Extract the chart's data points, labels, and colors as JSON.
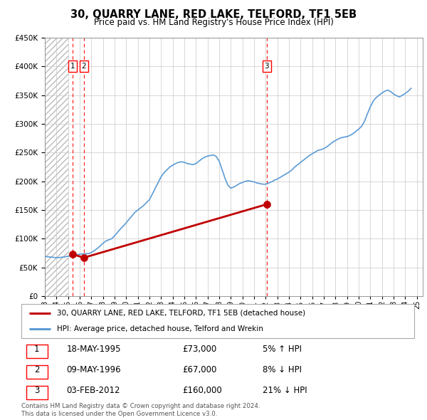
{
  "title": "30, QUARRY LANE, RED LAKE, TELFORD, TF1 5EB",
  "subtitle": "Price paid vs. HM Land Registry's House Price Index (HPI)",
  "legend_label_red": "30, QUARRY LANE, RED LAKE, TELFORD, TF1 5EB (detached house)",
  "legend_label_blue": "HPI: Average price, detached house, Telford and Wrekin",
  "footer1": "Contains HM Land Registry data © Crown copyright and database right 2024.",
  "footer2": "This data is licensed under the Open Government Licence v3.0.",
  "transactions": [
    {
      "num": 1,
      "date": "18-MAY-1995",
      "price": 73000,
      "hpi_rel": "5% ↑ HPI",
      "x": 1995.37
    },
    {
      "num": 2,
      "date": "09-MAY-1996",
      "price": 67000,
      "hpi_rel": "8% ↓ HPI",
      "x": 1996.36
    },
    {
      "num": 3,
      "date": "03-FEB-2012",
      "price": 160000,
      "hpi_rel": "21% ↓ HPI",
      "x": 2012.09
    }
  ],
  "hpi_color": "#5b9bd5",
  "price_color": "#c00000",
  "vline_color": "#ff0000",
  "grid_color": "#c8c8c8",
  "ylim_min": 0,
  "ylim_max": 450000,
  "xlim_min": 1993,
  "xlim_max": 2025.5,
  "hpi_data": {
    "years": [
      1993.0,
      1993.25,
      1993.5,
      1993.75,
      1994.0,
      1994.25,
      1994.5,
      1994.75,
      1995.0,
      1995.25,
      1995.5,
      1995.75,
      1996.0,
      1996.25,
      1996.5,
      1996.75,
      1997.0,
      1997.25,
      1997.5,
      1997.75,
      1998.0,
      1998.25,
      1998.5,
      1998.75,
      1999.0,
      1999.25,
      1999.5,
      1999.75,
      2000.0,
      2000.25,
      2000.5,
      2000.75,
      2001.0,
      2001.25,
      2001.5,
      2001.75,
      2002.0,
      2002.25,
      2002.5,
      2002.75,
      2003.0,
      2003.25,
      2003.5,
      2003.75,
      2004.0,
      2004.25,
      2004.5,
      2004.75,
      2005.0,
      2005.25,
      2005.5,
      2005.75,
      2006.0,
      2006.25,
      2006.5,
      2006.75,
      2007.0,
      2007.25,
      2007.5,
      2007.75,
      2008.0,
      2008.25,
      2008.5,
      2008.75,
      2009.0,
      2009.25,
      2009.5,
      2009.75,
      2010.0,
      2010.25,
      2010.5,
      2010.75,
      2011.0,
      2011.25,
      2011.5,
      2011.75,
      2012.0,
      2012.25,
      2012.5,
      2012.75,
      2013.0,
      2013.25,
      2013.5,
      2013.75,
      2014.0,
      2014.25,
      2014.5,
      2014.75,
      2015.0,
      2015.25,
      2015.5,
      2015.75,
      2016.0,
      2016.25,
      2016.5,
      2016.75,
      2017.0,
      2017.25,
      2017.5,
      2017.75,
      2018.0,
      2018.25,
      2018.5,
      2018.75,
      2019.0,
      2019.25,
      2019.5,
      2019.75,
      2020.0,
      2020.25,
      2020.5,
      2020.75,
      2021.0,
      2021.25,
      2021.5,
      2021.75,
      2022.0,
      2022.25,
      2022.5,
      2022.75,
      2023.0,
      2023.25,
      2023.5,
      2023.75,
      2024.0,
      2024.25,
      2024.5
    ],
    "values": [
      69000,
      68500,
      68000,
      67500,
      67000,
      67200,
      67800,
      68500,
      69500,
      70000,
      71000,
      72000,
      73000,
      73500,
      73800,
      74000,
      76000,
      79000,
      83000,
      87000,
      92000,
      96000,
      98000,
      100000,
      105000,
      111000,
      117000,
      122000,
      128000,
      134000,
      140000,
      146000,
      150000,
      154000,
      158000,
      163000,
      168000,
      178000,
      188000,
      198000,
      208000,
      215000,
      220000,
      225000,
      228000,
      231000,
      233000,
      234000,
      233000,
      231000,
      230000,
      229000,
      231000,
      235000,
      239000,
      242000,
      244000,
      245000,
      246000,
      243000,
      235000,
      220000,
      205000,
      193000,
      188000,
      190000,
      193000,
      196000,
      198000,
      200000,
      201000,
      200000,
      199000,
      197000,
      196000,
      195000,
      195000,
      197000,
      199000,
      202000,
      204000,
      207000,
      210000,
      213000,
      216000,
      220000,
      225000,
      229000,
      233000,
      237000,
      241000,
      245000,
      248000,
      251000,
      254000,
      255000,
      257000,
      260000,
      264000,
      268000,
      271000,
      274000,
      276000,
      277000,
      278000,
      280000,
      283000,
      287000,
      291000,
      296000,
      305000,
      318000,
      330000,
      340000,
      346000,
      350000,
      354000,
      357000,
      359000,
      356000,
      352000,
      349000,
      347000,
      350000,
      353000,
      357000,
      362000
    ]
  },
  "price_data": {
    "years": [
      1995.37,
      1996.36,
      2012.09
    ],
    "values": [
      73000,
      67000,
      160000
    ]
  }
}
